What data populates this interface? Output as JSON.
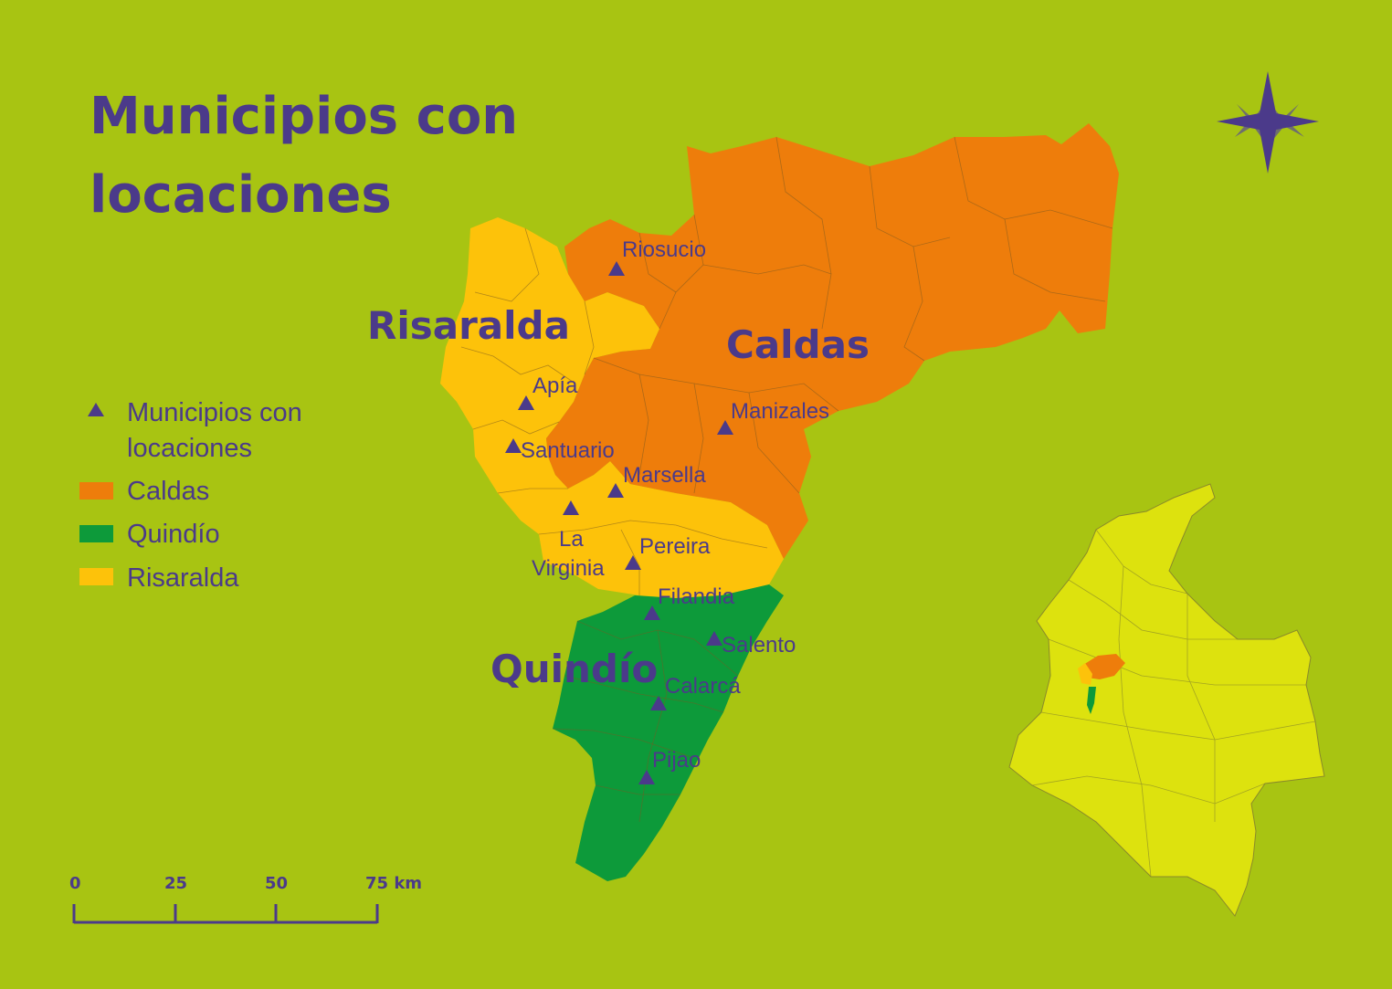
{
  "title": {
    "line1": "Municipios con",
    "line2": "locaciones"
  },
  "departments": {
    "risaralda": "Risaralda",
    "caldas": "Caldas",
    "quindio": "Quindío"
  },
  "towns": [
    {
      "name": "Riosucio"
    },
    {
      "name": "Apía"
    },
    {
      "name": "Santuario"
    },
    {
      "name": "Marsella"
    },
    {
      "name": "Manizales"
    },
    {
      "name": "La"
    },
    {
      "name": "Virginia"
    },
    {
      "name": "Pereira"
    },
    {
      "name": "Filandia"
    },
    {
      "name": "Salento"
    },
    {
      "name": "Calarcá"
    },
    {
      "name": "Pijao"
    }
  ],
  "legend": {
    "marker_line1": "Municipios con",
    "marker_line2": "locaciones",
    "caldas": "Caldas",
    "quindio": "Quindío",
    "risaralda": "Risaralda"
  },
  "scale": {
    "t0": "0",
    "t1": "25",
    "t2": "50",
    "t3": "75 km"
  },
  "colors": {
    "background": "#a8c412",
    "caldas": "#ee7d0b",
    "quindio": "#0d9a3a",
    "risaralda": "#fdc20a",
    "colombia": "#dde20e",
    "text": "#4b3a8a"
  },
  "icons": {
    "compass": "compass-rose-icon",
    "marker": "triangle-marker-icon"
  }
}
